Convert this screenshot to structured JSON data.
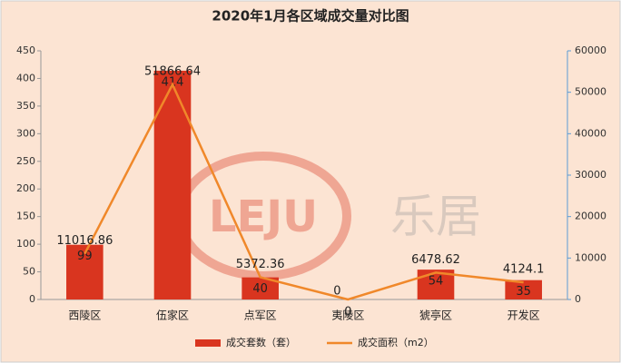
{
  "chart_data": {
    "type": "bar-line",
    "title": "2020年1月各区域成交量对比图",
    "watermark": [
      "LEJU",
      "乐居"
    ],
    "categories": [
      "西陵区",
      "伍家区",
      "点军区",
      "夷陵区",
      "猇亭区",
      "开发区"
    ],
    "series": [
      {
        "name": "成交套数（套）",
        "type": "bar",
        "color": "#d9351f",
        "values": [
          99,
          414,
          40,
          0,
          54,
          35
        ]
      },
      {
        "name": "成交面积（m2）",
        "type": "line",
        "axis": "y2",
        "color": "#f0882a",
        "values": [
          11016.86,
          51866.64,
          5372.36,
          0,
          6478.62,
          4124.1
        ]
      }
    ],
    "ylim": [
      0,
      450
    ],
    "yticks": [
      0,
      50,
      100,
      150,
      200,
      250,
      300,
      350,
      400,
      450
    ],
    "y2lim": [
      0,
      60000
    ],
    "y2ticks": [
      0,
      10000,
      20000,
      30000,
      40000,
      50000,
      60000
    ],
    "legend": "bottom"
  }
}
